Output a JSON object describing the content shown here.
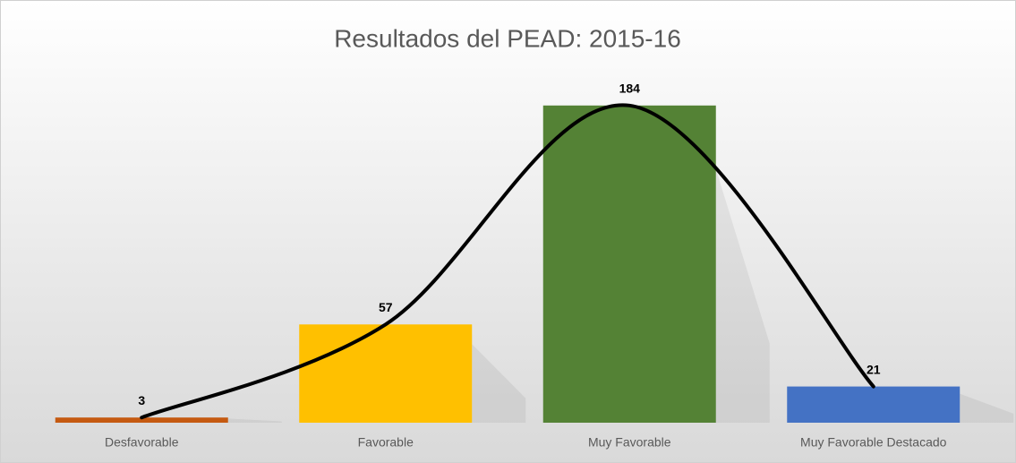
{
  "chart_data": {
    "type": "bar",
    "title": "Resultados del PEAD: 2015-16",
    "categories": [
      "Desfavorable",
      "Favorable",
      "Muy Favorable",
      "Muy Favorable Destacado"
    ],
    "values": [
      3,
      57,
      184,
      21
    ],
    "colors": [
      "#c55a11",
      "#ffc000",
      "#548235",
      "#4472c4"
    ],
    "line_color": "#000000",
    "ylim": [
      0,
      200
    ]
  }
}
